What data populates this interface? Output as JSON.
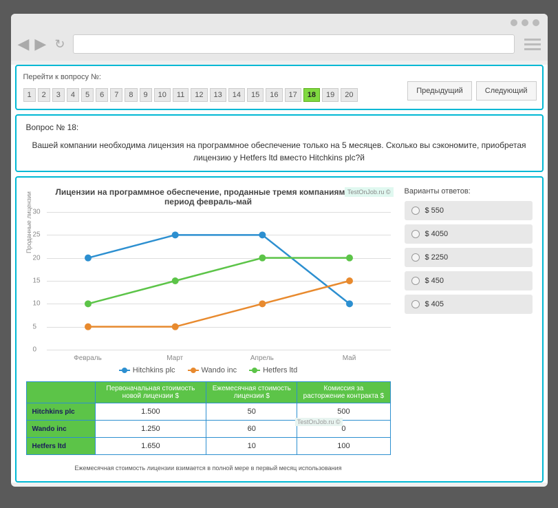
{
  "browser": {
    "url": ""
  },
  "nav": {
    "label": "Перейти к вопросу №:",
    "numbers": [
      "1",
      "2",
      "3",
      "4",
      "5",
      "6",
      "7",
      "8",
      "9",
      "10",
      "11",
      "12",
      "13",
      "14",
      "15",
      "16",
      "17",
      "18",
      "19",
      "20"
    ],
    "active": 17,
    "prev": "Предыдущий",
    "next": "Следующий"
  },
  "question": {
    "title": "Вопрос № 18:",
    "text": "Вашей компании необходима лицензия на программное обеспечение только на 5 месяцев. Сколько вы сэкономите, приобретая лицензию у Hetfers ltd вместо Hitchkins plc?й"
  },
  "watermark": "TestOnJob.ru ©",
  "chart": {
    "title": "Лицензии на программное обеспечение, проданные тремя компаниями за период февраль-май",
    "y_label": "Проданные лицензии",
    "y_ticks": [
      0,
      5,
      10,
      15,
      20,
      25,
      30
    ],
    "ylim": [
      0,
      30
    ],
    "x_labels": [
      "Февраль",
      "Март",
      "Апрель",
      "Май"
    ],
    "series": [
      {
        "name": "Hitchkins plc",
        "color": "#2c8fd0",
        "values": [
          20,
          25,
          25,
          10
        ]
      },
      {
        "name": "Wando inc",
        "color": "#e88a2e",
        "values": [
          5,
          5,
          10,
          15
        ]
      },
      {
        "name": "Hetfers ltd",
        "color": "#5cc448",
        "values": [
          10,
          15,
          20,
          20
        ]
      }
    ],
    "marker_radius": 5,
    "line_width": 2.5,
    "grid_color": "#dddddd",
    "background": "#ffffff"
  },
  "table": {
    "headers": [
      "",
      "Первоначальная стоимость новой лицензии $",
      "Ежемесячная стоимость лицензии $",
      "Комиссия за расторжение контракта $"
    ],
    "rows": [
      {
        "label": "Hitchkins plc",
        "cells": [
          "1.500",
          "50",
          "500"
        ]
      },
      {
        "label": "Wando inc",
        "cells": [
          "1.250",
          "60",
          "0"
        ]
      },
      {
        "label": "Hetfers ltd",
        "cells": [
          "1.650",
          "10",
          "100"
        ]
      }
    ],
    "header_bg": "#5cc448",
    "row_header_bg": "#39b4e8",
    "border_color": "#2c8fd0"
  },
  "footnote": "Ежемесячная стоимость лицензии взимается в полной мере в первый месяц использования",
  "answers": {
    "label": "Варианты ответов:",
    "options": [
      "$ 550",
      "$ 4050",
      "$ 2250",
      "$ 450",
      "$ 405"
    ]
  }
}
